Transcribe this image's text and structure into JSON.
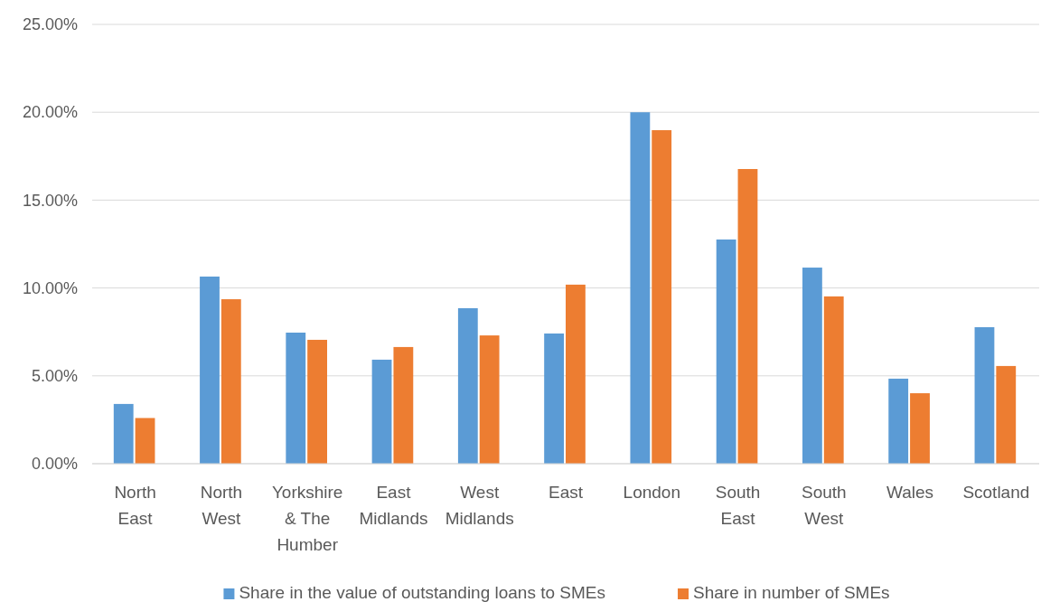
{
  "chart_data": {
    "type": "bar",
    "categories": [
      "North East",
      "North West",
      "Yorkshire & The Humber",
      "East Midlands",
      "West Midlands",
      "East",
      "London",
      "South East",
      "South West",
      "Wales",
      "Scotland"
    ],
    "series": [
      {
        "name": "Share in the value of outstanding loans to SMEs",
        "color": "#5b9bd5",
        "values": [
          3.4,
          10.65,
          7.46,
          5.92,
          8.85,
          7.41,
          20.0,
          12.76,
          11.16,
          4.84,
          7.77
        ]
      },
      {
        "name": "Share in number of SMEs",
        "color": "#ed7d31",
        "values": [
          2.6,
          9.36,
          7.05,
          6.64,
          7.3,
          10.19,
          18.98,
          16.77,
          9.52,
          4.01,
          5.56
        ]
      }
    ],
    "ylim": [
      0,
      25
    ],
    "yticks": [
      {
        "value": 0,
        "label": "0.00%"
      },
      {
        "value": 5,
        "label": "5.00%"
      },
      {
        "value": 10,
        "label": "10.00%"
      },
      {
        "value": 15,
        "label": "15.00%"
      },
      {
        "value": 20,
        "label": "20.00%"
      },
      {
        "value": 25,
        "label": "25.00%"
      }
    ],
    "grid": "y",
    "legend": "bottom"
  }
}
